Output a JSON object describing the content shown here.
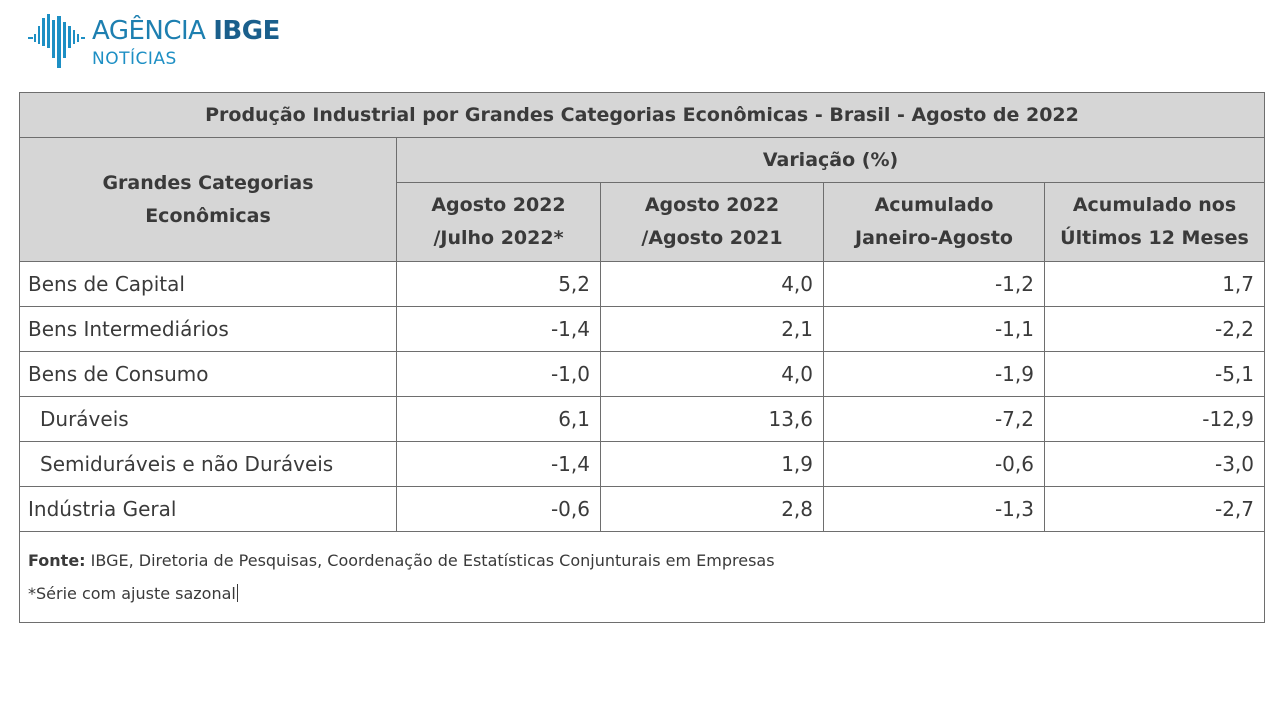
{
  "logo": {
    "agencia": "AGÊNCIA",
    "ibge": "IBGE",
    "noticias": "NOTÍCIAS",
    "brand_color": "#1d7fb0"
  },
  "table": {
    "title": "Produção Industrial por Grandes Categorias Econômicas  -  Brasil - Agosto de 2022",
    "category_header_line1": "Grandes Categorias",
    "category_header_line2": "Econômicas",
    "variation_header": "Variação (%)",
    "columns": [
      {
        "line1": "Agosto 2022",
        "line2": "/Julho 2022*"
      },
      {
        "line1": "Agosto 2022",
        "line2": "/Agosto 2021"
      },
      {
        "line1": "Acumulado",
        "line2": "Janeiro-Agosto"
      },
      {
        "line1": "Acumulado nos",
        "line2": "Últimos 12 Meses"
      }
    ],
    "rows": [
      {
        "label": "Bens de Capital",
        "values": [
          "5,2",
          "4,0",
          "-1,2",
          "1,7"
        ]
      },
      {
        "label": "Bens Intermediários",
        "values": [
          "-1,4",
          "2,1",
          "-1,1",
          "-2,2"
        ]
      },
      {
        "label": "Bens de Consumo",
        "values": [
          "-1,0",
          "4,0",
          "-1,9",
          "-5,1"
        ]
      },
      {
        "label": "Duráveis",
        "values": [
          "6,1",
          "13,6",
          "-7,2",
          "-12,9"
        ]
      },
      {
        "label": "Semiduráveis e não Duráveis",
        "values": [
          "-1,4",
          "1,9",
          "-0,6",
          "-3,0"
        ]
      },
      {
        "label": "Indústria Geral",
        "values": [
          "-0,6",
          "2,8",
          "-1,3",
          "-2,7"
        ]
      }
    ],
    "header_bg": "#d6d6d6",
    "border_color": "#6e6e6e"
  },
  "footer": {
    "source_label": "Fonte:",
    "source_text": " IBGE, Diretoria de Pesquisas, Coordenação de Estatísticas Conjunturais em Empresas",
    "note": "*Série com ajuste sazonal"
  }
}
